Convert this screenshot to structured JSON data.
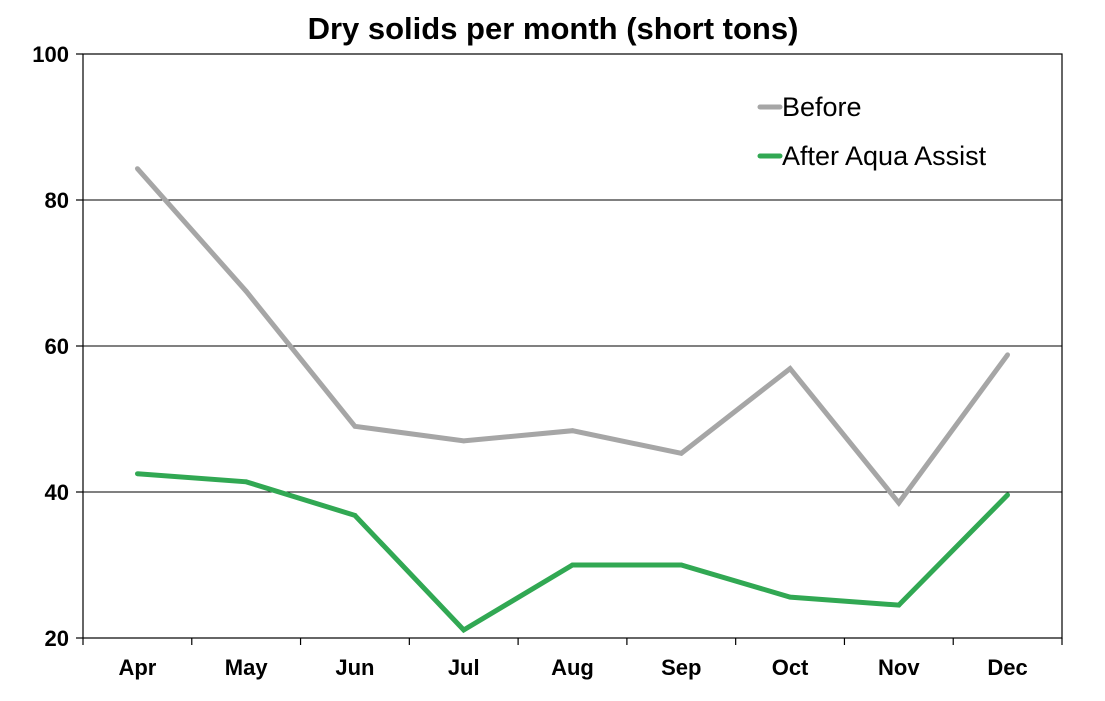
{
  "chart_data": {
    "type": "line",
    "title": "Dry solids per month (short tons)",
    "xlabel": "",
    "ylabel": "",
    "categories": [
      "Apr",
      "May",
      "Jun",
      "Jul",
      "Aug",
      "Sep",
      "Oct",
      "Nov",
      "Dec"
    ],
    "ylim": [
      20,
      100
    ],
    "yticks": [
      "20",
      "40",
      "60",
      "80",
      "100"
    ],
    "grid": true,
    "legend_position": "top-right",
    "series": [
      {
        "name": "Before",
        "color": "#a6a6a6",
        "values": [
          84.3,
          67.5,
          49,
          47,
          48.4,
          45.3,
          56.9,
          38.5,
          58.8
        ]
      },
      {
        "name": "After Aqua Assist",
        "color": "#31a853",
        "values": [
          42.5,
          41.4,
          36.8,
          21.1,
          30,
          30,
          25.6,
          24.5,
          39.6
        ]
      }
    ]
  }
}
